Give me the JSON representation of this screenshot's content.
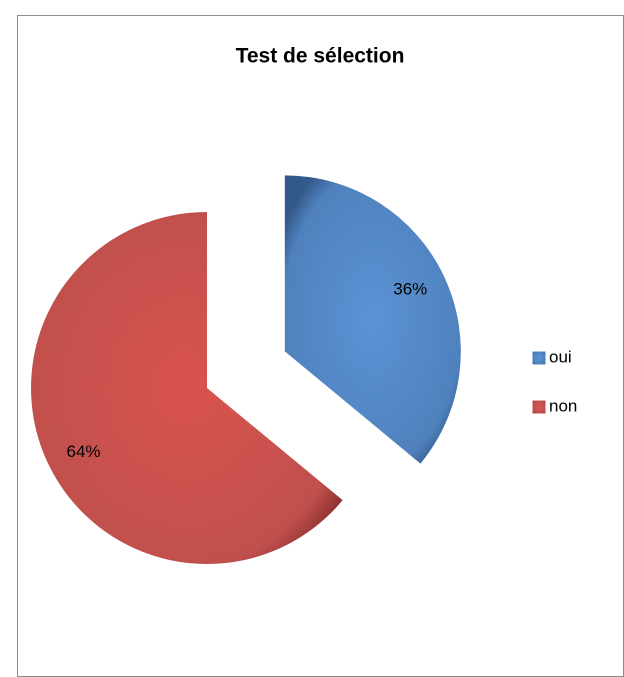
{
  "chart_data": {
    "type": "pie",
    "title": "Test de sélection",
    "categories": [
      "oui",
      "non"
    ],
    "values": [
      36,
      64
    ],
    "value_labels": [
      "36%",
      "64%"
    ],
    "colors": [
      "#4f81bd",
      "#c0504d"
    ],
    "legend": "right"
  }
}
